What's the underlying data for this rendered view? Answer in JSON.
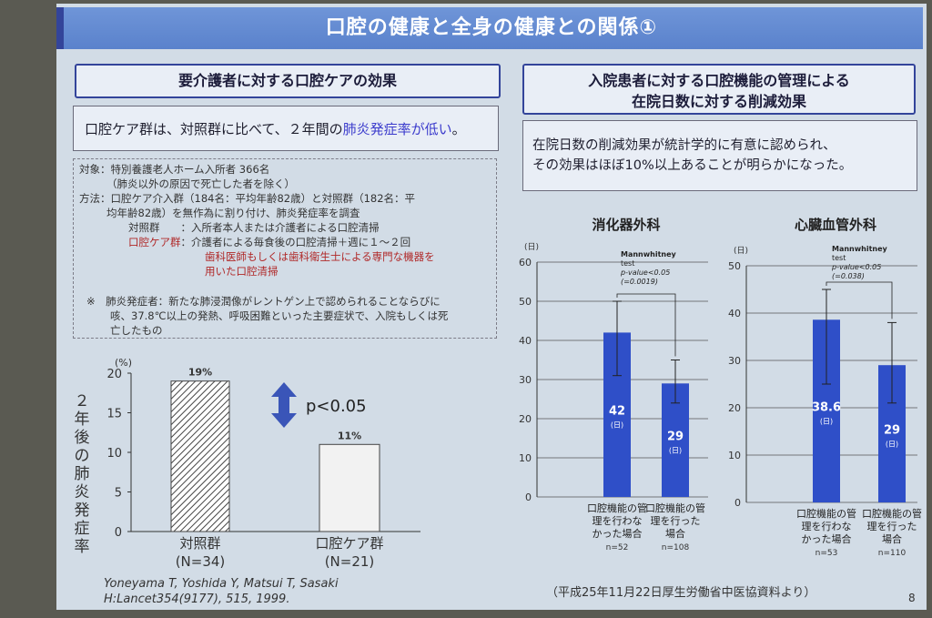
{
  "slide": {
    "title": "口腔の健康と全身の健康との関係①",
    "page_number": "8"
  },
  "left": {
    "header": "要介護者に対する口腔ケアの効果",
    "summary_prefix": "口腔ケア群は、対照群に比べて、２年間の",
    "summary_highlight": "肺炎発症率が低い",
    "summary_suffix": "。",
    "method": {
      "l1": "対象：特別養護老人ホーム入所者 366名",
      "l2": "（肺炎以外の原因で死亡した者を除く）",
      "l3": "方法：口腔ケア介入群（184名：平均年齢82歳）と対照群（182名：平",
      "l4": "均年齢82歳）を無作為に割り付け、肺炎発症率を調査",
      "l5": "対照群　　：入所者本人または介護者による口腔清掃",
      "l6a": "口腔ケア群",
      "l6b": "：介護者による毎食後の口腔清掃＋週に１〜２回",
      "l7": "歯科医師もしくは歯科衛生士による専門な機器を",
      "l8": "用いた口腔清掃",
      "n1": "※　肺炎発症者：新たな肺浸潤像がレントゲン上で認められることならびに",
      "n2": "咳、37.8℃以上の発熱、呼吸困難といった主要症状で、入院もしくは死",
      "n3": "亡したもの"
    },
    "citation_l1": "Yoneyama T, Yoshida Y, Matsui T, Sasaki",
    "citation_l2": "H:Lancet354(9177), 515, 1999."
  },
  "right": {
    "header_l1": "入院患者に対する口腔機能の管理による",
    "header_l2": "在院日数に対する削減効果",
    "summary_l1": "在院日数の削減効果が統計学的に有意に認められ、",
    "summary_l2": "その効果はほぼ10%以上あることが明らかになった。",
    "source": "（平成25年11月22日厚生労働省中医協資料より）"
  },
  "chart_data": [
    {
      "type": "bar",
      "ylabel": "２年後の肺炎発症率",
      "yunit": "(%)",
      "ylim": [
        0,
        20
      ],
      "yticks": [
        "0",
        "5",
        "10",
        "15",
        "20"
      ],
      "categories": [
        "対照群",
        "口腔ケア群"
      ],
      "category_n": [
        "(N=34)",
        "(N=21)"
      ],
      "values": [
        19,
        11
      ],
      "value_labels": [
        "19%",
        "11%"
      ],
      "annotation": "p<0.05",
      "colors": {
        "bar1": "hatched",
        "bar2": "#f2f2f2"
      }
    },
    {
      "type": "bar",
      "title": "消化器外科",
      "yunit": "(日)",
      "ylim": [
        0,
        60
      ],
      "yticks": [
        "0",
        "10",
        "20",
        "30",
        "40",
        "50",
        "60"
      ],
      "categories": [
        "口腔機能の管理を行わなかった場合",
        "口腔機能の管理を行った場合"
      ],
      "category_lines": [
        [
          "口腔機能の管",
          "理を行わな",
          "かった場合"
        ],
        [
          "口腔機能の管",
          "理を行った",
          "場合"
        ]
      ],
      "category_n": [
        "n=52",
        "n=108"
      ],
      "values": [
        42,
        29
      ],
      "error_high": [
        50,
        35
      ],
      "error_low": [
        31,
        24
      ],
      "value_labels": [
        "42",
        "29"
      ],
      "value_unit": "(日)",
      "test_lines": [
        "Mannwhitney",
        "test",
        "p-value<0.05",
        "(=0.0019)"
      ],
      "colors": {
        "bar": "#2f4fc8"
      }
    },
    {
      "type": "bar",
      "title": "心臓血管外科",
      "yunit": "(日)",
      "ylim": [
        0,
        50
      ],
      "yticks": [
        "0",
        "10",
        "20",
        "30",
        "40",
        "50"
      ],
      "categories": [
        "口腔機能の管理を行わなかった場合",
        "口腔機能の管理を行った場合"
      ],
      "category_lines": [
        [
          "口腔機能の管",
          "理を行わな",
          "かった場合"
        ],
        [
          "口腔機能の管",
          "理を行った",
          "場合"
        ]
      ],
      "category_n": [
        "n=53",
        "n=110"
      ],
      "values": [
        38.6,
        29
      ],
      "error_high": [
        45,
        38
      ],
      "error_low": [
        25,
        21
      ],
      "value_labels": [
        "38.6",
        "29"
      ],
      "value_unit": "(日)",
      "test_lines": [
        "Mannwhitney",
        "test",
        "p-value<0.05",
        "(=0.038)"
      ],
      "colors": {
        "bar": "#2f4fc8"
      }
    }
  ]
}
